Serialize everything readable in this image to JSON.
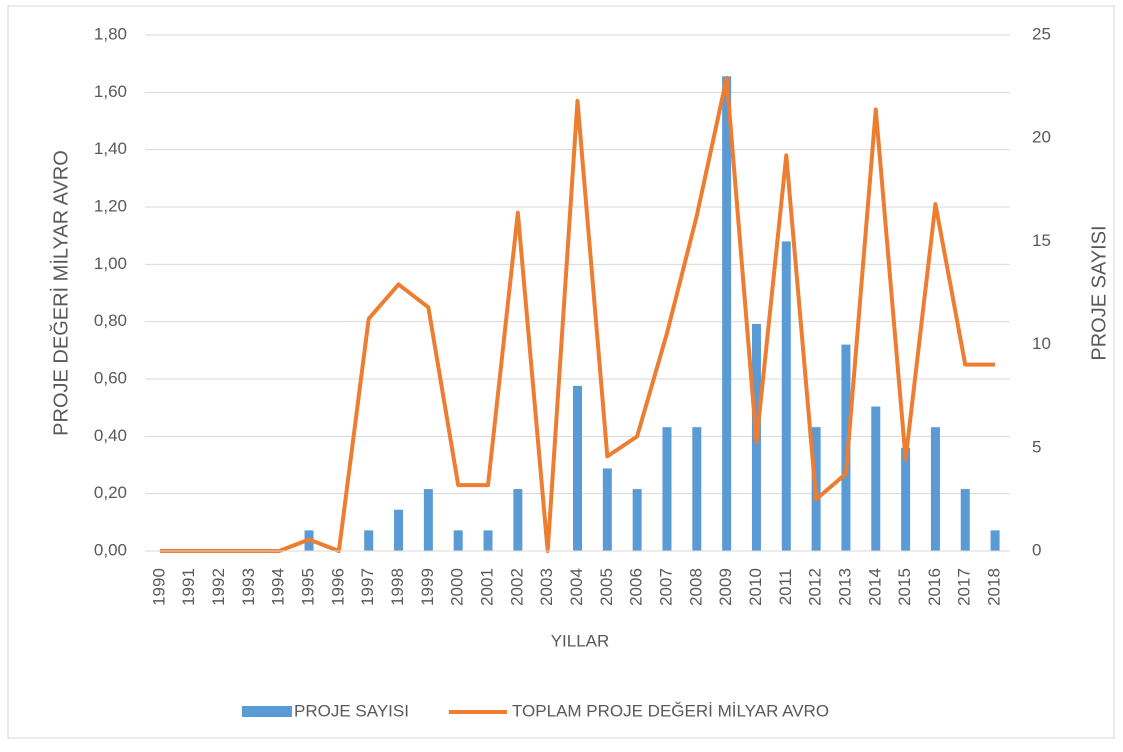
{
  "chart_data": {
    "type": "bar-line",
    "x_label": "YILLAR",
    "y_label": "PROJE DEĞERİ MİLYAR AVRO",
    "y2_label": "PROJE SAYISI",
    "categories": [
      "1990",
      "1991",
      "1992",
      "1993",
      "1994",
      "1995",
      "1996",
      "1997",
      "1998",
      "1999",
      "2000",
      "2001",
      "2002",
      "2003",
      "2004",
      "2005",
      "2006",
      "2007",
      "2008",
      "2009",
      "2010",
      "2011",
      "2012",
      "2013",
      "2014",
      "2015",
      "2016",
      "2017",
      "2018"
    ],
    "series": [
      {
        "name": "PROJE SAYISI",
        "type": "bar",
        "axis": "y2",
        "color": "#5b9bd5",
        "values": [
          0,
          0,
          0,
          0,
          0,
          1,
          0,
          1,
          2,
          3,
          1,
          1,
          3,
          0,
          8,
          4,
          3,
          6,
          6,
          23,
          11,
          15,
          6,
          10,
          7,
          5,
          6,
          3,
          1
        ]
      },
      {
        "name": "TOPLAM PROJE DEĞERİ MİLYAR AVRO",
        "type": "line",
        "axis": "y",
        "color": "#ed7d31",
        "values": [
          0,
          0,
          0,
          0,
          0,
          0.04,
          0,
          0.81,
          0.93,
          0.85,
          0.23,
          0.23,
          1.18,
          0,
          1.57,
          0.33,
          0.4,
          0.76,
          1.17,
          1.65,
          0.38,
          1.38,
          0.18,
          0.27,
          1.54,
          0.32,
          1.21,
          0.65,
          0.65
        ]
      }
    ],
    "ylim": [
      0,
      1.8
    ],
    "yticks": [
      {
        "value": 0,
        "label": "0,00"
      },
      {
        "value": 0.2,
        "label": "0,20"
      },
      {
        "value": 0.4,
        "label": "0,40"
      },
      {
        "value": 0.6,
        "label": "0,60"
      },
      {
        "value": 0.8,
        "label": "0,80"
      },
      {
        "value": 1,
        "label": "1,00"
      },
      {
        "value": 1.2,
        "label": "1,20"
      },
      {
        "value": 1.4,
        "label": "1,40"
      },
      {
        "value": 1.6,
        "label": "1,60"
      },
      {
        "value": 1.8,
        "label": "1,80"
      }
    ],
    "y2lim": [
      0,
      25
    ],
    "y2ticks": [
      0,
      5,
      10,
      15,
      20,
      25
    ],
    "grid": true,
    "legend": "bottom"
  }
}
